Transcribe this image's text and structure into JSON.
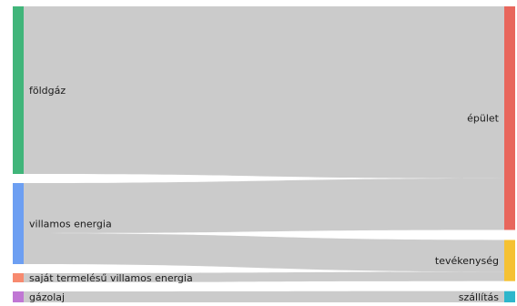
{
  "chart_data": {
    "type": "sankey",
    "nodes": [
      {
        "id": "foldgaz",
        "label": "földgáz",
        "side": "source",
        "color": "#41b57a"
      },
      {
        "id": "villamos",
        "label": "villamos energia",
        "side": "source",
        "color": "#6d9ff2"
      },
      {
        "id": "sajat",
        "label": "saját termelésű villamos energia",
        "side": "source",
        "color": "#f78a6f"
      },
      {
        "id": "gazolaj",
        "label": "gázolaj",
        "side": "source",
        "color": "#c077d4"
      },
      {
        "id": "epulet",
        "label": "épület",
        "side": "target",
        "color": "#e8665c"
      },
      {
        "id": "tevekenyseg",
        "label": "tevékenység",
        "side": "target",
        "color": "#f5c132"
      },
      {
        "id": "szallitas",
        "label": "szállítás",
        "side": "target",
        "color": "#2db6cb"
      }
    ],
    "links": [
      {
        "source": "foldgaz",
        "target": "epulet",
        "value": 184
      },
      {
        "source": "villamos",
        "target": "epulet",
        "value": 55
      },
      {
        "source": "villamos",
        "target": "tevekenyseg",
        "value": 34
      },
      {
        "source": "sajat",
        "target": "tevekenyseg",
        "value": 10
      },
      {
        "source": "gazolaj",
        "target": "szallitas",
        "value": 12
      }
    ]
  }
}
